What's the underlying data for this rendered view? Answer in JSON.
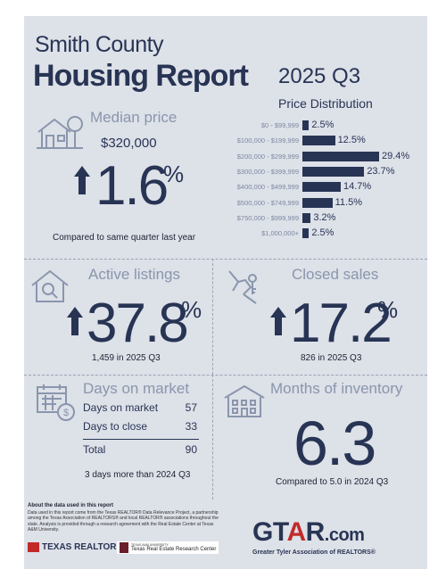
{
  "header": {
    "title_line1": "Smith County",
    "title_line2": "Housing Report",
    "quarter": "2025 Q3"
  },
  "price_distribution": {
    "title": "Price Distribution",
    "rows": [
      {
        "label": "$0 - $99,999",
        "value_text": "2.5%"
      },
      {
        "label": "$100,000 - $199,999",
        "value_text": "12.5%"
      },
      {
        "label": "$200,000 - $299,999",
        "value_text": "29.4%"
      },
      {
        "label": "$300,000 - $399,999",
        "value_text": "23.7%"
      },
      {
        "label": "$400,000 - $499,999",
        "value_text": "14.7%"
      },
      {
        "label": "$500,000 - $749,999",
        "value_text": "11.5%"
      },
      {
        "label": "$750,000 - $999,999",
        "value_text": "3.2%"
      },
      {
        "label": "$1,000,000+",
        "value_text": "2.5%"
      }
    ]
  },
  "chart_data": {
    "type": "bar",
    "title": "Price Distribution",
    "categories": [
      "$0 - $99,999",
      "$100,000 - $199,999",
      "$200,000 - $299,999",
      "$300,000 - $399,999",
      "$400,000 - $499,999",
      "$500,000 - $749,999",
      "$750,000 - $999,999",
      "$1,000,000+"
    ],
    "values": [
      2.5,
      12.5,
      29.4,
      23.7,
      14.7,
      11.5,
      3.2,
      2.5
    ],
    "orientation": "horizontal"
  },
  "median_price": {
    "title": "Median price",
    "value": "$320,000",
    "change_number": "1.6",
    "change_unit": "%",
    "caption": "Compared to same quarter last year"
  },
  "active_listings": {
    "title": "Active listings",
    "change_number": "37.8",
    "change_unit": "%",
    "caption": "1,459 in 2025 Q3"
  },
  "closed_sales": {
    "title": "Closed sales",
    "change_number": "17.2",
    "change_unit": "%",
    "caption": "826 in 2025 Q3"
  },
  "days_on_market": {
    "title": "Days on market",
    "rows": [
      {
        "label": "Days on market",
        "value": "57"
      },
      {
        "label": "Days to close",
        "value": "33"
      }
    ],
    "total_label": "Total",
    "total_value": "90",
    "caption": "3 days more than 2024 Q3"
  },
  "months_inventory": {
    "title": "Months of inventory",
    "value": "6.3",
    "caption": "Compared to 5.0 in 2024 Q3"
  },
  "footer": {
    "about_heading": "About the data used in this report",
    "about_text": "Data used in this report come from the Texas REALTOR® Data Relevance Project, a partnership among the Texas Association of REALTORS® and local REALTOR® associations throughout the state. Analysis is provided through a research agreement with the Real Estate Center at Texas A&M University.",
    "texas_realtors": "TEXAS REALTORS",
    "tamu_small": "TEXAS A&M UNIVERSITY",
    "tamu_center": "Texas Real Estate Research Center",
    "gtar_pre": "GT",
    "gtar_a": "A",
    "gtar_post": "R",
    "gtar_com": ".com",
    "gtar_sub": "Greater Tyler Association of REALTORS®"
  },
  "colors": {
    "navy": "#283454",
    "muted": "#8a96ad",
    "background": "#dde1e8",
    "accent_red": "#c22a2a"
  }
}
